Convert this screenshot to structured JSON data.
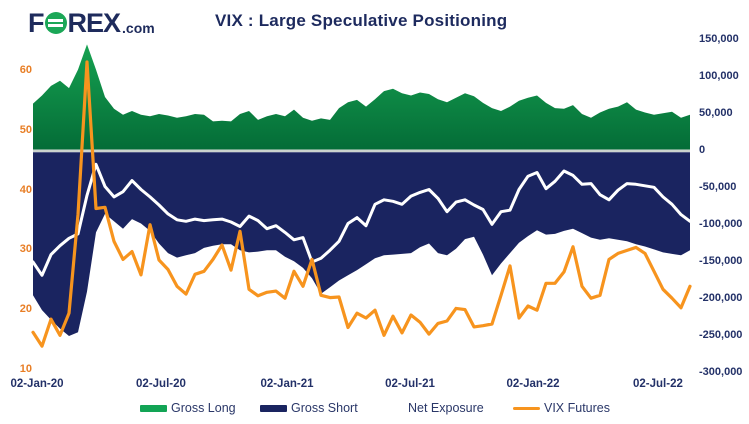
{
  "header": {
    "brand": {
      "f": "F",
      "rex": "REX",
      "suffix": ".com"
    },
    "title": "VIX : Large Speculative Positioning"
  },
  "colors": {
    "navy": "#1A2460",
    "green_top": "#16A251",
    "green_bottom": "#046C37",
    "orange": "#F7941E",
    "white": "#FFFFFF",
    "zero_line": "#CBD3CE",
    "axis_text_navy": "#233168",
    "axis_text_orange": "#E87E25"
  },
  "legend": {
    "items": [
      {
        "label": "Gross Long",
        "swatch": "bar",
        "color": "#12A455"
      },
      {
        "label": "Gross Short",
        "swatch": "bar",
        "color": "#1A2460"
      },
      {
        "label": "Net Exposure",
        "swatch": "line",
        "color": "#FFFFFF"
      },
      {
        "label": "VIX Futures",
        "swatch": "line",
        "color": "#F7941E"
      }
    ]
  },
  "chart_data": {
    "type": "combo",
    "title": "VIX : Large Speculative Positioning",
    "grid": false,
    "legend_position": "bottom",
    "x_start_date": "2020-01-02",
    "x_interval_days": 13,
    "x_ticks": [
      {
        "i": 0.44,
        "label": "02-Jan-20"
      },
      {
        "i": 14.22,
        "label": "02-Jul-20"
      },
      {
        "i": 28.22,
        "label": "02-Jan-21"
      },
      {
        "i": 41.89,
        "label": "02-Jul-21"
      },
      {
        "i": 55.56,
        "label": "02-Jan-22"
      },
      {
        "i": 69.44,
        "label": "02-Jul-22"
      }
    ],
    "axis_left": {
      "side": "left",
      "range": [
        10,
        60
      ],
      "ticks": [
        {
          "v": 60,
          "label": "60"
        },
        {
          "v": 50,
          "label": "50"
        },
        {
          "v": 40,
          "label": "40"
        },
        {
          "v": 30,
          "label": "30"
        },
        {
          "v": 20,
          "label": "20"
        },
        {
          "v": 10,
          "label": "10"
        }
      ]
    },
    "axis_right": {
      "side": "right",
      "range": [
        -300000,
        150000
      ],
      "ticks": [
        {
          "v": 150000,
          "label": "150,000"
        },
        {
          "v": 100000,
          "label": "100,000"
        },
        {
          "v": 50000,
          "label": "50,000"
        },
        {
          "v": 0,
          "label": "0"
        },
        {
          "v": -50000,
          "label": "-50,000"
        },
        {
          "v": -100000,
          "label": "-100,000"
        },
        {
          "v": -150000,
          "label": "-150,000"
        },
        {
          "v": -200000,
          "label": "-200,000"
        },
        {
          "v": -250000,
          "label": "-250,000"
        },
        {
          "v": -300000,
          "label": "-300,000"
        }
      ]
    },
    "series": [
      {
        "name": "Gross Long",
        "type": "area",
        "axis": "right",
        "values": [
          64000,
          75000,
          88000,
          95000,
          85000,
          110000,
          144000,
          110000,
          73000,
          57000,
          49000,
          54000,
          49000,
          47000,
          50000,
          48000,
          45000,
          47000,
          50000,
          49000,
          40000,
          41000,
          40000,
          50000,
          54000,
          42000,
          47000,
          50000,
          47000,
          56000,
          45000,
          41000,
          44000,
          42000,
          58000,
          66000,
          69000,
          60000,
          70000,
          81000,
          84000,
          78000,
          75000,
          79000,
          77000,
          70000,
          66000,
          72000,
          78000,
          74000,
          65000,
          58000,
          54000,
          60000,
          68000,
          72000,
          75000,
          65000,
          58000,
          57000,
          62000,
          50000,
          45000,
          52000,
          57000,
          60000,
          66000,
          56000,
          52000,
          49000,
          51000,
          53000,
          45000,
          49000
        ]
      },
      {
        "name": "Gross Short",
        "type": "area",
        "axis": "right",
        "values": [
          -195000,
          -215000,
          -228000,
          -240000,
          -250000,
          -245000,
          -190000,
          -110000,
          -85000,
          -95000,
          -105000,
          -92000,
          -98000,
          -108000,
          -125000,
          -138000,
          -144000,
          -141000,
          -138000,
          -131000,
          -128000,
          -126000,
          -126000,
          -134000,
          -137000,
          -136000,
          -134000,
          -134000,
          -143000,
          -149000,
          -158000,
          -172000,
          -193000,
          -184000,
          -175000,
          -168000,
          -161000,
          -153000,
          -145000,
          -141000,
          -140000,
          -139000,
          -138000,
          -130000,
          -125000,
          -138000,
          -141000,
          -132000,
          -119000,
          -116000,
          -140000,
          -168000,
          -152000,
          -138000,
          -124000,
          -115000,
          -107000,
          -113000,
          -112000,
          -108000,
          -105000,
          -111000,
          -117000,
          -120000,
          -118000,
          -120000,
          -122000,
          -126000,
          -129000,
          -133000,
          -137000,
          -139000,
          -141000,
          -134000
        ]
      },
      {
        "name": "Net Exposure",
        "type": "line",
        "axis": "right",
        "values": [
          -150000,
          -168000,
          -140000,
          -128000,
          -118000,
          -112000,
          -60000,
          -18000,
          -48000,
          -62000,
          -55000,
          -40000,
          -52000,
          -62000,
          -73000,
          -85000,
          -93000,
          -95000,
          -92000,
          -94000,
          -93000,
          -92000,
          -96000,
          -102000,
          -88000,
          -94000,
          -105000,
          -101000,
          -110000,
          -120000,
          -117000,
          -150000,
          -145000,
          -134000,
          -122000,
          -98000,
          -90000,
          -101000,
          -72000,
          -66000,
          -68000,
          -72000,
          -61000,
          -56000,
          -52000,
          -64000,
          -82000,
          -69000,
          -66000,
          -73000,
          -79000,
          -99000,
          -82000,
          -80000,
          -52000,
          -34000,
          -29000,
          -51000,
          -41000,
          -27000,
          -33000,
          -45000,
          -44000,
          -59000,
          -66000,
          -53000,
          -44000,
          -45000,
          -47000,
          -49000,
          -62000,
          -72000,
          -86000,
          -95000
        ]
      },
      {
        "name": "VIX Futures",
        "type": "line",
        "axis": "left",
        "values": [
          16.3,
          14.0,
          18.5,
          15.8,
          19.5,
          36,
          61.5,
          37,
          37.2,
          31.5,
          28.5,
          29.8,
          25.9,
          34.3,
          28.4,
          26.8,
          24.0,
          22.7,
          26.0,
          26.5,
          28.5,
          30.9,
          26.7,
          33.2,
          23.5,
          22.4,
          23.0,
          23.2,
          22.0,
          26.5,
          24.0,
          28.5,
          22.5,
          22.1,
          22.2,
          17.1,
          19.5,
          18.7,
          20.0,
          15.8,
          19.0,
          16.2,
          19.2,
          18.0,
          16.0,
          17.8,
          18.2,
          20.3,
          20.1,
          17.2,
          17.4,
          17.7,
          22.5,
          27.4,
          18.7,
          20.7,
          20.0,
          24.5,
          24.5,
          26.4,
          30.6,
          24.0,
          22.0,
          22.5,
          28.5,
          29.5,
          30.0,
          30.5,
          29.5,
          26.5,
          23.5,
          22.0,
          20.4,
          24.0
        ]
      }
    ]
  }
}
